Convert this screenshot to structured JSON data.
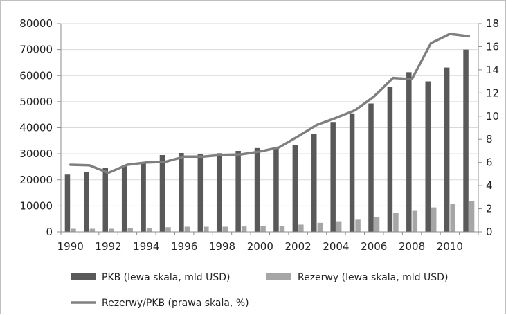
{
  "chart_data": {
    "type": "bar",
    "title": "",
    "x": [
      "1990",
      "1991",
      "1992",
      "1993",
      "1994",
      "1995",
      "1996",
      "1997",
      "1998",
      "1999",
      "2000",
      "2001",
      "2002",
      "2003",
      "2004",
      "2005",
      "2006",
      "2007",
      "2008",
      "2009",
      "2010",
      "2011"
    ],
    "x_tick_labels": [
      "1990",
      "1992",
      "1994",
      "1996",
      "1998",
      "2000",
      "2002",
      "2004",
      "2006",
      "2008",
      "2010"
    ],
    "y_left": {
      "range": [
        0,
        80000
      ],
      "ticks": [
        "0",
        "10000",
        "20000",
        "30000",
        "40000",
        "50000",
        "60000",
        "70000",
        "80000"
      ]
    },
    "y_right": {
      "range": [
        0,
        18
      ],
      "ticks": [
        "0",
        "2",
        "4",
        "6",
        "8",
        "10",
        "12",
        "14",
        "16",
        "18"
      ]
    },
    "grid": "horizontal",
    "legend_position": "bottom",
    "series": [
      {
        "name": "PKB (lewa skala, mld USD)",
        "kind": "bar",
        "axis": "left",
        "color": "#595959",
        "values": [
          22000,
          23000,
          24500,
          25500,
          26500,
          29500,
          30300,
          30000,
          30200,
          31100,
          32200,
          32300,
          33300,
          37500,
          42200,
          45500,
          49300,
          55600,
          61300,
          57800,
          63100,
          70000
        ]
      },
      {
        "name": "Rezerwy (lewa skala, mld USD)",
        "kind": "bar",
        "axis": "left",
        "color": "#a6a6a6",
        "values": [
          1200,
          1200,
          1200,
          1400,
          1500,
          1800,
          2000,
          2000,
          2000,
          2100,
          2200,
          2300,
          2800,
          3500,
          4100,
          4700,
          5700,
          7400,
          8100,
          9400,
          10800,
          11800
        ]
      },
      {
        "name": "Rezerwy/PKB (prawa skala, %)",
        "kind": "line",
        "axis": "right",
        "color": "#7f7f7f",
        "values": [
          5.8,
          5.75,
          5.1,
          5.8,
          6.0,
          6.05,
          6.5,
          6.5,
          6.65,
          6.7,
          6.95,
          7.3,
          8.25,
          9.25,
          9.85,
          10.5,
          11.7,
          13.3,
          13.2,
          16.3,
          17.1,
          16.9
        ]
      }
    ]
  }
}
